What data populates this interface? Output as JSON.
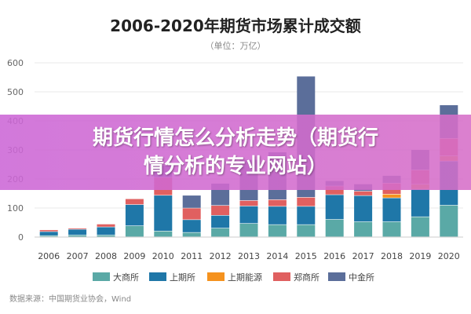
{
  "chart_data": {
    "type": "bar",
    "stacked": true,
    "title": "2006-2020年期货市场累计成交额",
    "subtitle": "（单位：万亿）",
    "categories": [
      "2006",
      "2007",
      "2008",
      "2009",
      "2010",
      "2011",
      "2012",
      "2013",
      "2014",
      "2015",
      "2016",
      "2017",
      "2018",
      "2019",
      "2020"
    ],
    "y_ticks": [
      "0",
      "100",
      "200",
      "300",
      "400",
      "500",
      "600"
    ],
    "ylim": [
      0,
      600
    ],
    "grid": true,
    "legend_position": "bottom",
    "source": "数据来源：中国期货业协会，Wind",
    "series": [
      {
        "name": "大商所",
        "color": "#5aa9a6",
        "values": [
          4,
          6,
          6,
          38,
          20,
          15,
          30,
          46,
          42,
          42,
          60,
          52,
          52,
          69,
          109
        ]
      },
      {
        "name": "上期所",
        "color": "#1f77a8",
        "values": [
          14,
          20,
          28,
          73,
          123,
          44,
          44,
          60,
          63,
          63,
          85,
          90,
          82,
          95,
          152
        ]
      },
      {
        "name": "上期能源",
        "color": "#f5921e",
        "values": [
          0,
          0,
          0,
          0,
          0,
          0,
          0,
          0,
          0,
          0,
          0,
          0,
          13,
          17,
          18
        ]
      },
      {
        "name": "郑商所",
        "color": "#e06060",
        "values": [
          6,
          4,
          10,
          20,
          62,
          40,
          34,
          19,
          23,
          31,
          30,
          15,
          38,
          49,
          60
        ]
      },
      {
        "name": "中金所",
        "color": "#5b6e9a",
        "values": [
          0,
          0,
          0,
          0,
          41,
          44,
          76,
          141,
          164,
          417,
          18,
          25,
          26,
          70,
          115
        ]
      }
    ]
  },
  "overlay": {
    "line1": "期货行情怎么分析走势（期货行",
    "line2": "情分析的专业网站）"
  }
}
